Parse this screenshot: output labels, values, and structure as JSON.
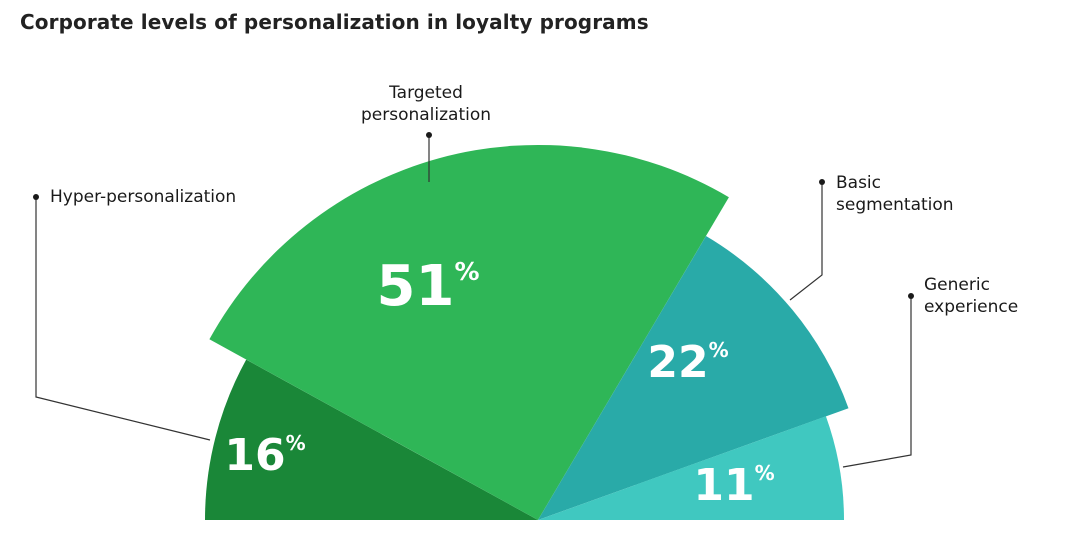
{
  "title": "Corporate levels of personalization in loyalty programs",
  "colors": {
    "hyper": "#1a8738",
    "targeted": "#2fb657",
    "basic": "#29aaa8",
    "generic": "#40c8c0",
    "text": "#1a1a1a",
    "leader": "#333333"
  },
  "chart_data": {
    "type": "pie",
    "title": "Corporate levels of personalization in loyalty programs",
    "layout": "semicircle",
    "slices": [
      {
        "key": "hyper",
        "label": [
          "Hyper-personalization"
        ],
        "value": 16,
        "unit": "%"
      },
      {
        "key": "targeted",
        "label": [
          "Targeted",
          "personalization"
        ],
        "value": 51,
        "unit": "%"
      },
      {
        "key": "basic",
        "label": [
          "Basic",
          "segmentation"
        ],
        "value": 22,
        "unit": "%"
      },
      {
        "key": "generic",
        "label": [
          "Generic",
          "experience"
        ],
        "value": 11,
        "unit": "%"
      }
    ]
  }
}
